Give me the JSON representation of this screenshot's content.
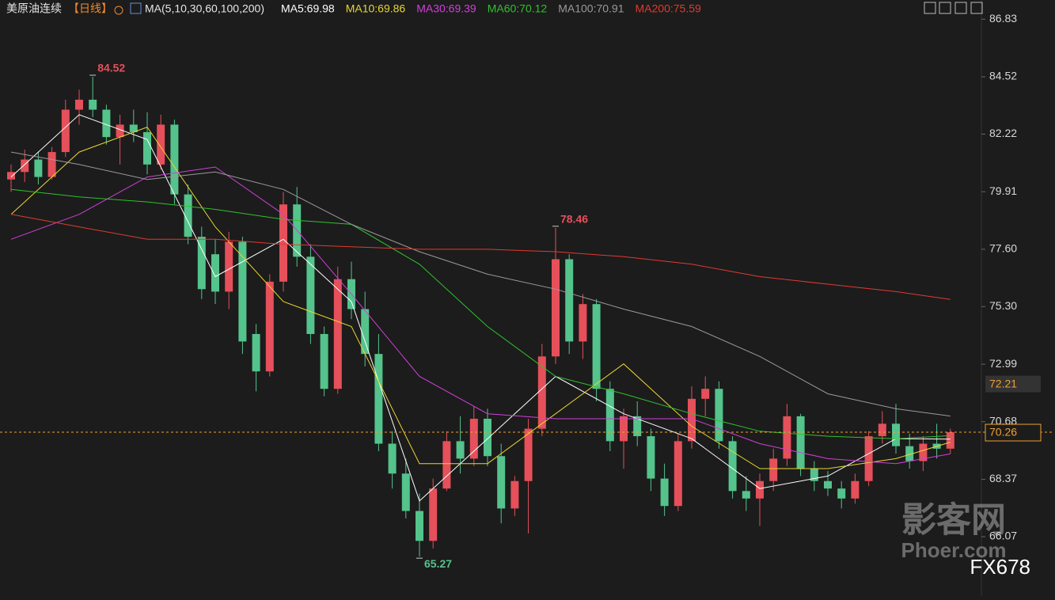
{
  "chart_data": {
    "type": "candlestick",
    "title": "美原油连续",
    "period": "【日线】",
    "indicator": "MA(5,10,30,60,100,200)",
    "up_color": "#e5505a",
    "down_color": "#54c38c",
    "ylim": [
      64.1,
      87.6
    ],
    "yticks": [
      86.83,
      84.52,
      82.22,
      79.91,
      {
        "value": 77.6,
        "label": "77.60"
      },
      {
        "value": 75.3,
        "label": "75.30"
      },
      72.99,
      70.68,
      68.37,
      66.07
    ],
    "open": [
      80.4,
      80.7,
      81.2,
      80.5,
      81.5,
      83.2,
      83.6,
      83.2,
      82.1,
      82.6,
      82.3,
      81.0,
      82.6,
      79.8,
      78.1,
      77.4,
      75.9,
      77.9,
      74.2,
      72.7,
      76.3,
      79.4,
      77.3,
      74.2,
      72.0,
      76.4,
      75.2,
      73.4,
      69.8,
      68.6,
      67.1,
      65.9,
      68.0,
      69.9,
      69.2,
      70.8,
      69.3,
      67.2,
      68.3,
      70.4,
      73.3,
      77.2,
      73.9,
      75.4,
      72.0,
      69.9,
      70.9,
      70.1,
      68.4,
      67.3,
      69.9,
      71.6,
      72.0,
      69.9,
      67.9,
      67.6,
      68.3,
      69.2,
      70.9,
      68.8,
      68.3,
      68.0,
      67.6,
      68.3,
      70.1,
      70.6,
      69.7,
      69.1,
      69.8,
      69.6
    ],
    "high": [
      81.0,
      81.6,
      81.5,
      81.7,
      83.6,
      84.0,
      84.52,
      83.4,
      83.0,
      83.2,
      83.1,
      83.0,
      82.8,
      80.2,
      78.5,
      78.0,
      78.3,
      78.1,
      74.6,
      76.6,
      79.9,
      80.1,
      77.8,
      74.5,
      76.9,
      77.1,
      75.9,
      74.2,
      70.3,
      69.2,
      67.8,
      68.4,
      70.3,
      70.9,
      71.3,
      71.2,
      69.8,
      68.5,
      70.8,
      73.8,
      78.46,
      77.4,
      75.8,
      75.6,
      72.3,
      71.2,
      71.5,
      70.4,
      69.0,
      70.2,
      72.1,
      72.5,
      72.3,
      70.1,
      68.5,
      68.6,
      69.6,
      71.4,
      71.0,
      69.1,
      68.7,
      68.3,
      68.6,
      70.3,
      71.1,
      71.4,
      70.2,
      70.1,
      70.6,
      70.4
    ],
    "low": [
      79.9,
      80.3,
      80.2,
      80.4,
      81.3,
      82.6,
      82.9,
      81.8,
      81.0,
      81.9,
      80.6,
      80.8,
      79.4,
      77.8,
      75.6,
      75.4,
      75.2,
      73.4,
      71.9,
      72.5,
      75.9,
      76.9,
      73.8,
      71.7,
      71.8,
      74.8,
      72.9,
      69.5,
      68.0,
      66.8,
      65.27,
      65.6,
      67.9,
      68.6,
      68.9,
      68.9,
      66.6,
      66.9,
      66.2,
      70.1,
      73.0,
      73.4,
      73.2,
      71.5,
      69.5,
      68.8,
      69.7,
      67.9,
      66.9,
      67.1,
      69.6,
      70.9,
      69.6,
      67.6,
      67.1,
      66.5,
      67.9,
      68.9,
      68.5,
      67.9,
      67.7,
      67.2,
      67.4,
      68.1,
      69.8,
      69.4,
      68.8,
      68.7,
      69.2,
      69.4
    ],
    "close": [
      80.7,
      81.2,
      80.5,
      81.5,
      83.2,
      83.6,
      83.2,
      82.1,
      82.6,
      82.3,
      81.0,
      82.6,
      79.8,
      78.1,
      76.0,
      75.9,
      77.9,
      73.9,
      72.7,
      76.3,
      79.4,
      77.3,
      74.2,
      72.0,
      76.4,
      75.2,
      73.4,
      69.8,
      68.6,
      67.1,
      65.9,
      68.0,
      69.9,
      69.2,
      70.8,
      69.3,
      67.2,
      68.3,
      70.4,
      73.3,
      77.2,
      73.9,
      75.4,
      72.0,
      69.9,
      70.9,
      70.1,
      68.4,
      67.3,
      69.9,
      71.6,
      72.0,
      69.9,
      67.9,
      67.6,
      68.3,
      69.2,
      70.9,
      68.8,
      68.3,
      68.0,
      67.6,
      68.3,
      70.1,
      70.6,
      69.7,
      69.1,
      69.8,
      69.6,
      70.26
    ],
    "series": [
      {
        "name": "MA5:69.98",
        "color": "#ffffff",
        "x": [
          0,
          5,
          10,
          15,
          20,
          25,
          30,
          35,
          40,
          45,
          50,
          55,
          60,
          65,
          69
        ],
        "values": [
          80.5,
          83.0,
          82.0,
          76.5,
          78.0,
          75.5,
          67.5,
          70.0,
          72.5,
          71.0,
          70.0,
          68.0,
          68.5,
          70.0,
          69.98
        ]
      },
      {
        "name": "MA10:69.86",
        "color": "#e8d630",
        "x": [
          0,
          5,
          10,
          15,
          20,
          25,
          30,
          35,
          40,
          45,
          50,
          55,
          60,
          65,
          69
        ],
        "values": [
          79.0,
          81.5,
          82.5,
          78.5,
          75.5,
          74.5,
          69.0,
          69.0,
          71.0,
          73.0,
          70.5,
          68.8,
          68.8,
          69.2,
          69.86
        ]
      },
      {
        "name": "MA30:69.39",
        "color": "#d040d8",
        "x": [
          0,
          5,
          10,
          15,
          20,
          25,
          30,
          35,
          40,
          45,
          50,
          55,
          60,
          65,
          69
        ],
        "values": [
          78.0,
          79.0,
          80.5,
          80.9,
          79.0,
          75.8,
          72.5,
          71.0,
          70.8,
          70.8,
          70.8,
          69.8,
          69.2,
          69.0,
          69.39
        ]
      },
      {
        "name": "MA60:70.12",
        "color": "#2fc12f",
        "x": [
          0,
          5,
          10,
          15,
          20,
          25,
          30,
          35,
          40,
          45,
          50,
          55,
          60,
          65,
          69
        ],
        "values": [
          80.0,
          79.7,
          79.5,
          79.2,
          78.8,
          78.6,
          77.0,
          74.5,
          72.5,
          71.8,
          71.0,
          70.3,
          70.1,
          70.0,
          70.12
        ]
      },
      {
        "name": "MA100:70.91",
        "color": "#9a9a9a",
        "x": [
          0,
          5,
          10,
          15,
          20,
          25,
          30,
          35,
          40,
          45,
          50,
          55,
          60,
          65,
          69
        ],
        "values": [
          81.5,
          81.0,
          80.4,
          80.7,
          80.0,
          78.6,
          77.5,
          76.6,
          76.0,
          75.2,
          74.5,
          73.3,
          71.8,
          71.2,
          70.91
        ]
      },
      {
        "name": "MA200:75.59",
        "color": "#e03a30",
        "x": [
          0,
          5,
          10,
          15,
          20,
          25,
          30,
          35,
          40,
          45,
          50,
          55,
          60,
          65,
          69
        ],
        "values": [
          79.0,
          78.5,
          78.0,
          78.0,
          77.8,
          77.7,
          77.6,
          77.6,
          77.5,
          77.3,
          77.0,
          76.5,
          76.2,
          75.9,
          75.59
        ]
      }
    ],
    "marker_label": 72.21,
    "watermark": [
      "影客网",
      "Phoer.com",
      "FX678"
    ]
  }
}
